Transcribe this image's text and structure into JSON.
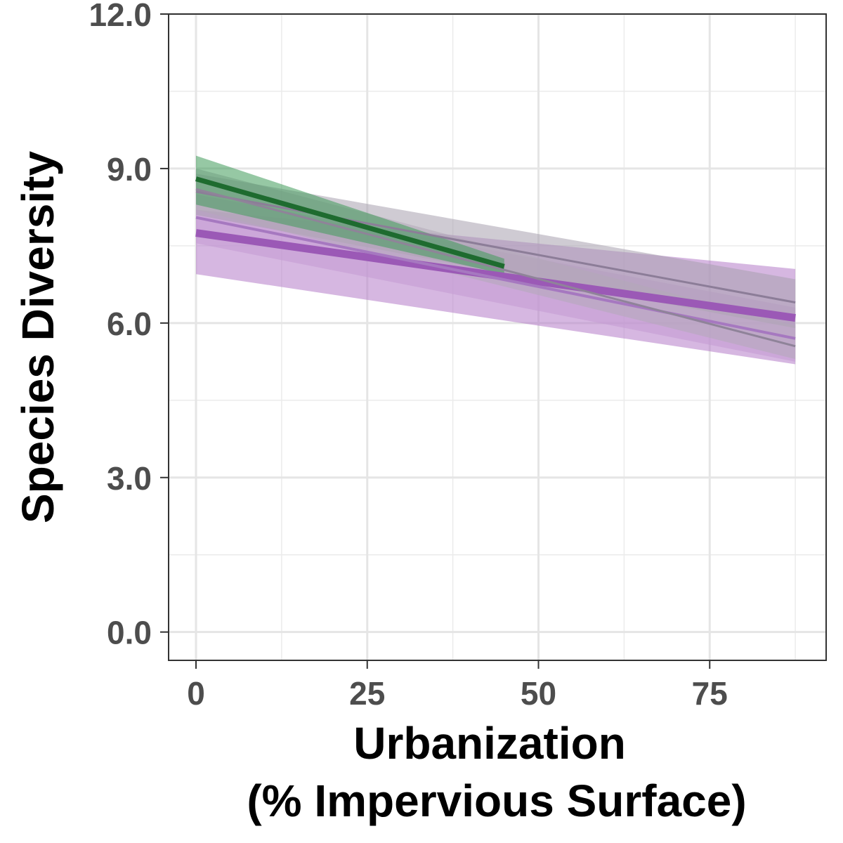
{
  "chart_data": {
    "type": "line",
    "xlabel_lines": [
      "Urbanization",
      "(% Impervious Surface)"
    ],
    "ylabel": "Species Diversity",
    "xlim": [
      -4,
      92
    ],
    "ylim": [
      -0.55,
      12.0
    ],
    "x_ticks": [
      0,
      25,
      50,
      75
    ],
    "x_tick_labels": [
      "0",
      "25",
      "50",
      "75"
    ],
    "y_ticks": [
      0,
      3,
      6,
      9,
      12
    ],
    "y_tick_labels": [
      "0.0",
      "3.0",
      "6.0",
      "9.0",
      "12.0"
    ],
    "grid": true,
    "legend": "none",
    "series": [
      {
        "color": "#9b59b6",
        "band_color": "#b57cc8",
        "line_width": 11,
        "x": [
          0,
          87.5
        ],
        "y": [
          7.75,
          6.1
        ],
        "lower": [
          6.95,
          5.2
        ],
        "upper": [
          8.2,
          7.05
        ]
      },
      {
        "color": "#a678c0",
        "band_color": "#c49bd4",
        "line_width": 4,
        "x": [
          0,
          87.5
        ],
        "y": [
          8.05,
          5.7
        ],
        "lower": [
          7.55,
          5.25
        ],
        "upper": [
          8.5,
          6.3
        ]
      },
      {
        "color": "#8c7d98",
        "band_color": "#a7a0ae",
        "line_width": 3,
        "x": [
          0,
          87.5
        ],
        "y": [
          8.55,
          6.4
        ],
        "lower": [
          8.1,
          5.9
        ],
        "upper": [
          8.9,
          6.85
        ]
      },
      {
        "color": "#8f8399",
        "band_color": "#b3aab8",
        "line_width": 3,
        "x": [
          0,
          87.5
        ],
        "y": [
          8.6,
          5.55
        ],
        "lower": [
          8.2,
          5.3
        ],
        "upper": [
          9.0,
          5.95
        ]
      },
      {
        "color": "#1e6b2f",
        "band_color": "#3f9a5a",
        "line_width": 7,
        "x": [
          0,
          45
        ],
        "y": [
          8.8,
          7.1
        ],
        "lower": [
          8.3,
          6.95
        ],
        "upper": [
          9.25,
          7.25
        ]
      }
    ]
  }
}
